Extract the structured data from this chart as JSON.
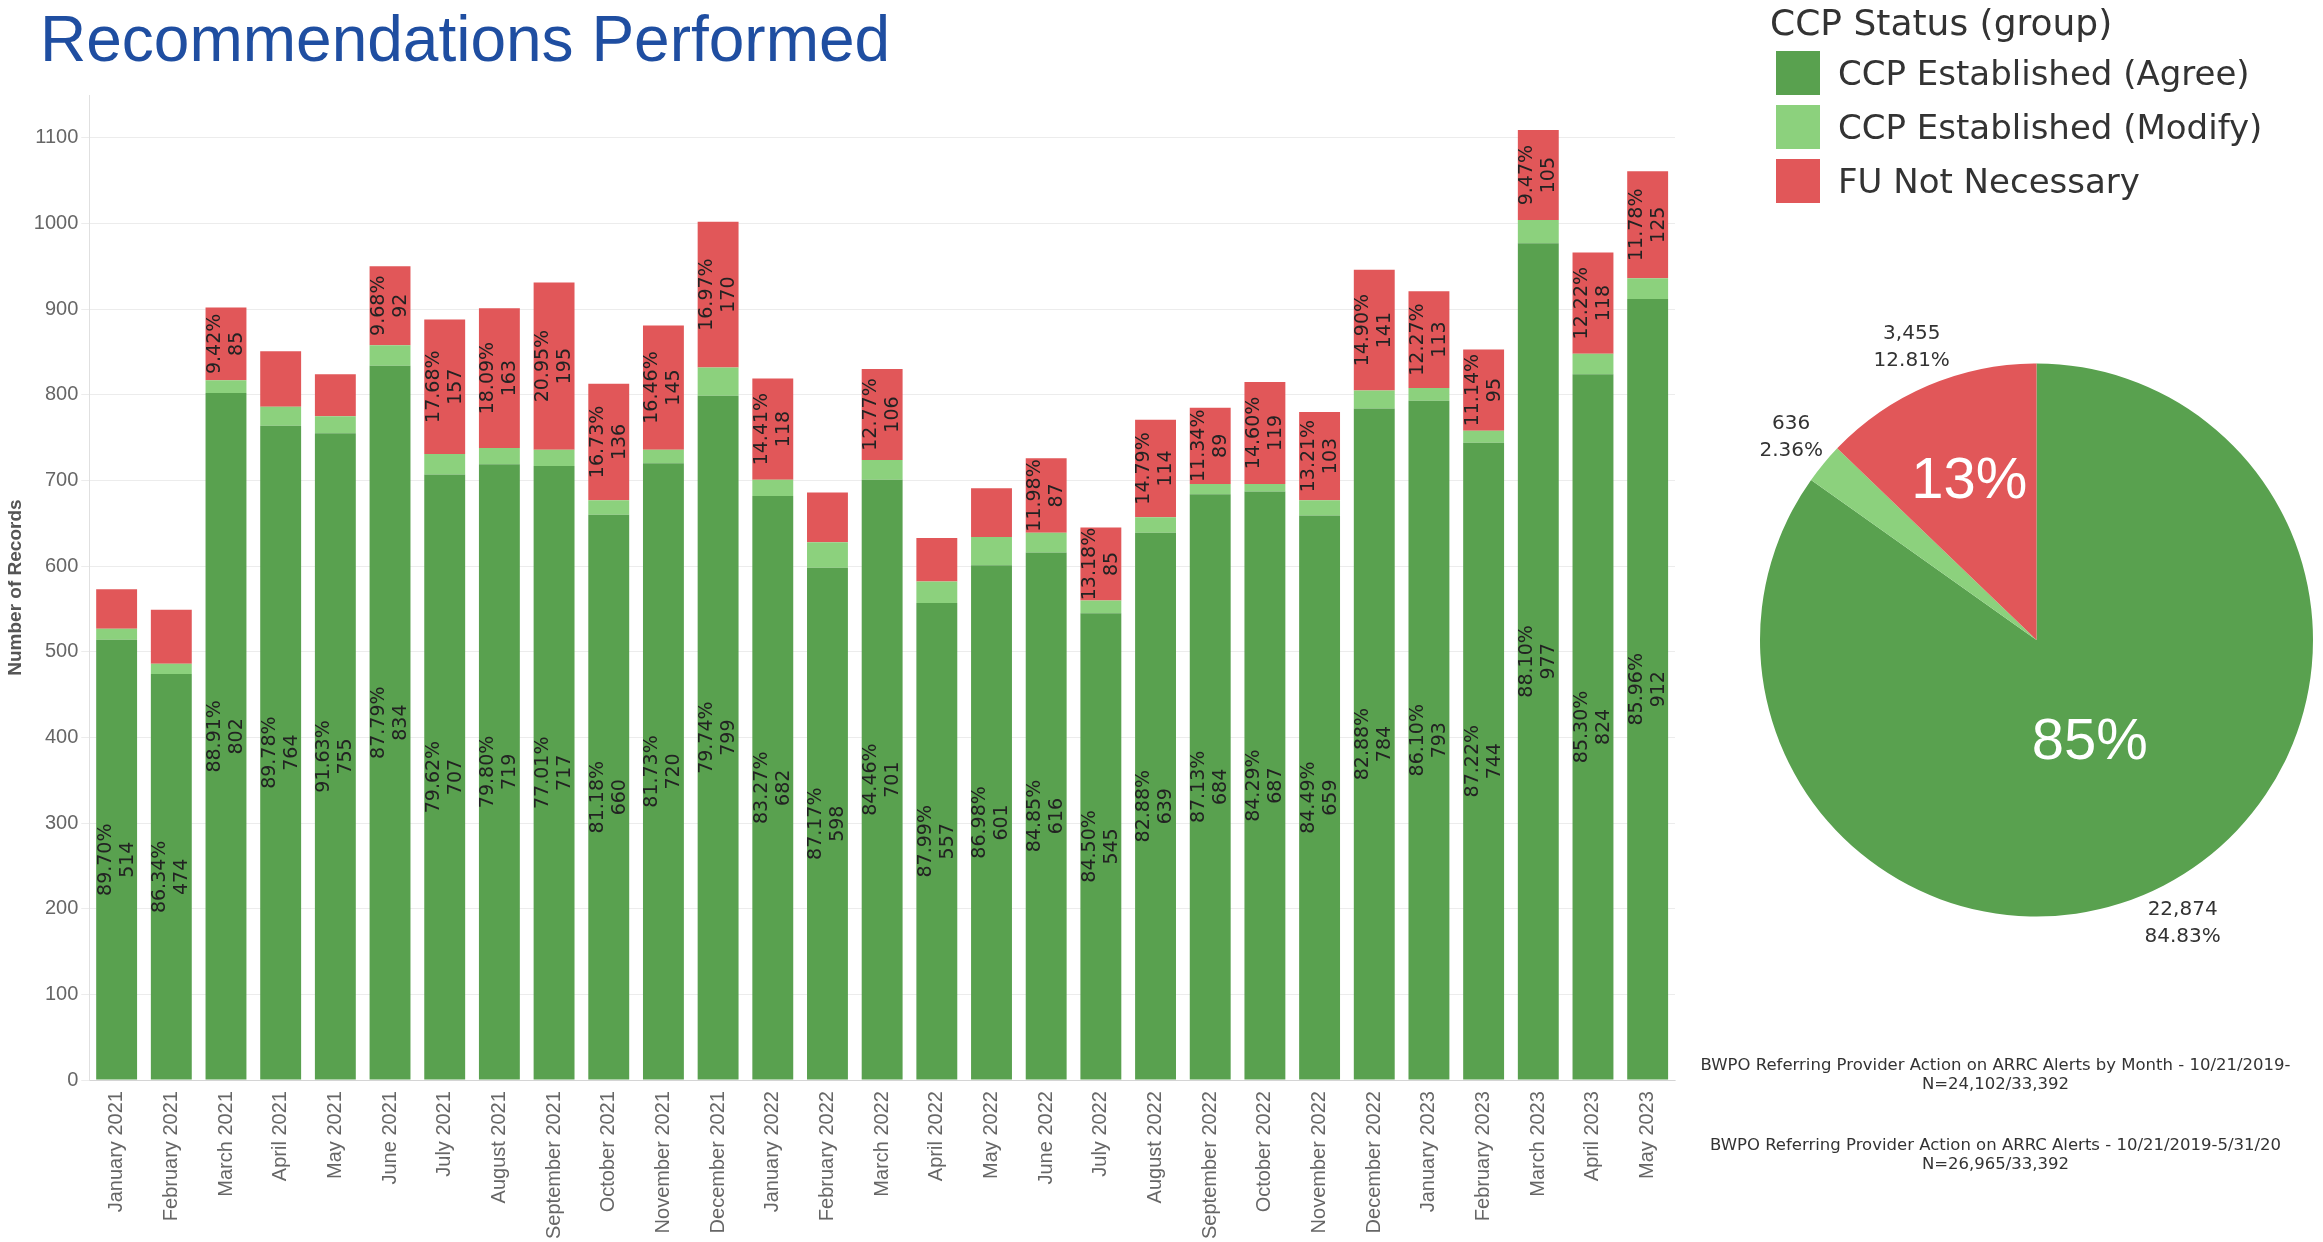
{
  "chart_data": [
    {
      "type": "bar",
      "title": "Recommendations Performed",
      "ylabel": "Number of Records",
      "stacked": true,
      "grid": "y",
      "ylim": [
        0,
        1150
      ],
      "yticks": [
        0,
        100,
        200,
        300,
        400,
        500,
        600,
        700,
        800,
        900,
        1000,
        1100
      ],
      "categories": [
        "January 2021",
        "February 2021",
        "March 2021",
        "April 2021",
        "May 2021",
        "June 2021",
        "July 2021",
        "August 2021",
        "September 2021",
        "October 2021",
        "November 2021",
        "December 2021",
        "January 2022",
        "February 2022",
        "March 2022",
        "April 2022",
        "May 2022",
        "June 2022",
        "July 2022",
        "August 2022",
        "September 2022",
        "October 2022",
        "November 2022",
        "December 2022",
        "January 2023",
        "February 2023",
        "March 2023",
        "April 2023",
        "May 2023"
      ],
      "series": [
        {
          "color": "#59a14f",
          "values": [
            514,
            474,
            802,
            764,
            755,
            834,
            707,
            719,
            717,
            660,
            720,
            799,
            682,
            598,
            701,
            557,
            601,
            616,
            545,
            639,
            684,
            687,
            659,
            784,
            793,
            744,
            977,
            824,
            912
          ],
          "value_labels": [
            "89.70%\n514",
            "86.34%\n474",
            "88.91%\n802",
            "89.78%\n764",
            "91.63%\n755",
            "87.79%\n834",
            "79.62%\n707",
            "79.80%\n719",
            "77.01%\n717",
            "81.18%\n660",
            "81.73%\n720",
            "79.74%\n799",
            "83.27%\n682",
            "87.17%\n598",
            "84.46%\n701",
            "87.99%\n557",
            "86.98%\n601",
            "84.85%\n616",
            "84.50%\n545",
            "82.88%\n639",
            "87.13%\n684",
            "84.29%\n687",
            "84.49%\n659",
            "82.88%\n784",
            "86.10%\n793",
            "87.22%\n744",
            "88.10%\n977",
            "85.30%\n824",
            "85.96%\n912"
          ]
        },
        {
          "color": "#8cd17d",
          "values": [
            13,
            12,
            15,
            22,
            20,
            24,
            24,
            19,
            19,
            17,
            16,
            33,
            19,
            30,
            23,
            25,
            33,
            23,
            15,
            18,
            12,
            9,
            18,
            21,
            15,
            14,
            27,
            24,
            24
          ]
        },
        {
          "color": "#e15759",
          "values": [
            46,
            63,
            85,
            65,
            49,
            92,
            157,
            163,
            195,
            136,
            145,
            170,
            118,
            58,
            106,
            51,
            57,
            87,
            85,
            114,
            89,
            119,
            103,
            141,
            113,
            95,
            105,
            118,
            125
          ],
          "value_labels": [
            null,
            null,
            "9.42%\n85",
            null,
            null,
            "9.68%\n92",
            "17.68%\n157",
            "18.09%\n163",
            "20.95%\n195",
            "16.73%\n136",
            "16.46%\n145",
            "16.97%\n170",
            "14.41%\n118",
            null,
            "12.77%\n106",
            null,
            null,
            "11.98%\n87",
            "13.18%\n85",
            "14.79%\n114",
            "11.34%\n89",
            "14.60%\n119",
            "13.21%\n103",
            "14.90%\n141",
            "12.27%\n113",
            "11.14%\n95",
            "9.47%\n105",
            "12.22%\n118",
            "11.78%\n125"
          ]
        }
      ],
      "annotations": [
        "BWPO Referring Provider Action on ARRC Alerts by Month - 10/21/2019-\nN=24,102/33,392"
      ]
    },
    {
      "type": "pie",
      "legend": "top right",
      "legend_title": "CCP Status (group)",
      "categories": [
        "CCP Established (Agree)",
        "CCP Established (Modify)",
        "FU Not Necessary"
      ],
      "values": [
        22874,
        636,
        3455
      ],
      "colors": [
        "#59a14f",
        "#8cd17d",
        "#e15759"
      ],
      "value_labels": [
        "22,874\n84.83%",
        "636\n2.36%",
        "3,455\n12.81%"
      ],
      "annotations": [
        {
          "text": "85%",
          "x": "CCP Established (Agree)"
        },
        {
          "text": "13%",
          "x": "FU Not Necessary"
        },
        "BWPO Referring Provider Action on ARRC Alerts - 10/21/2019-5/31/20\nN=26,965/33,392"
      ]
    }
  ]
}
